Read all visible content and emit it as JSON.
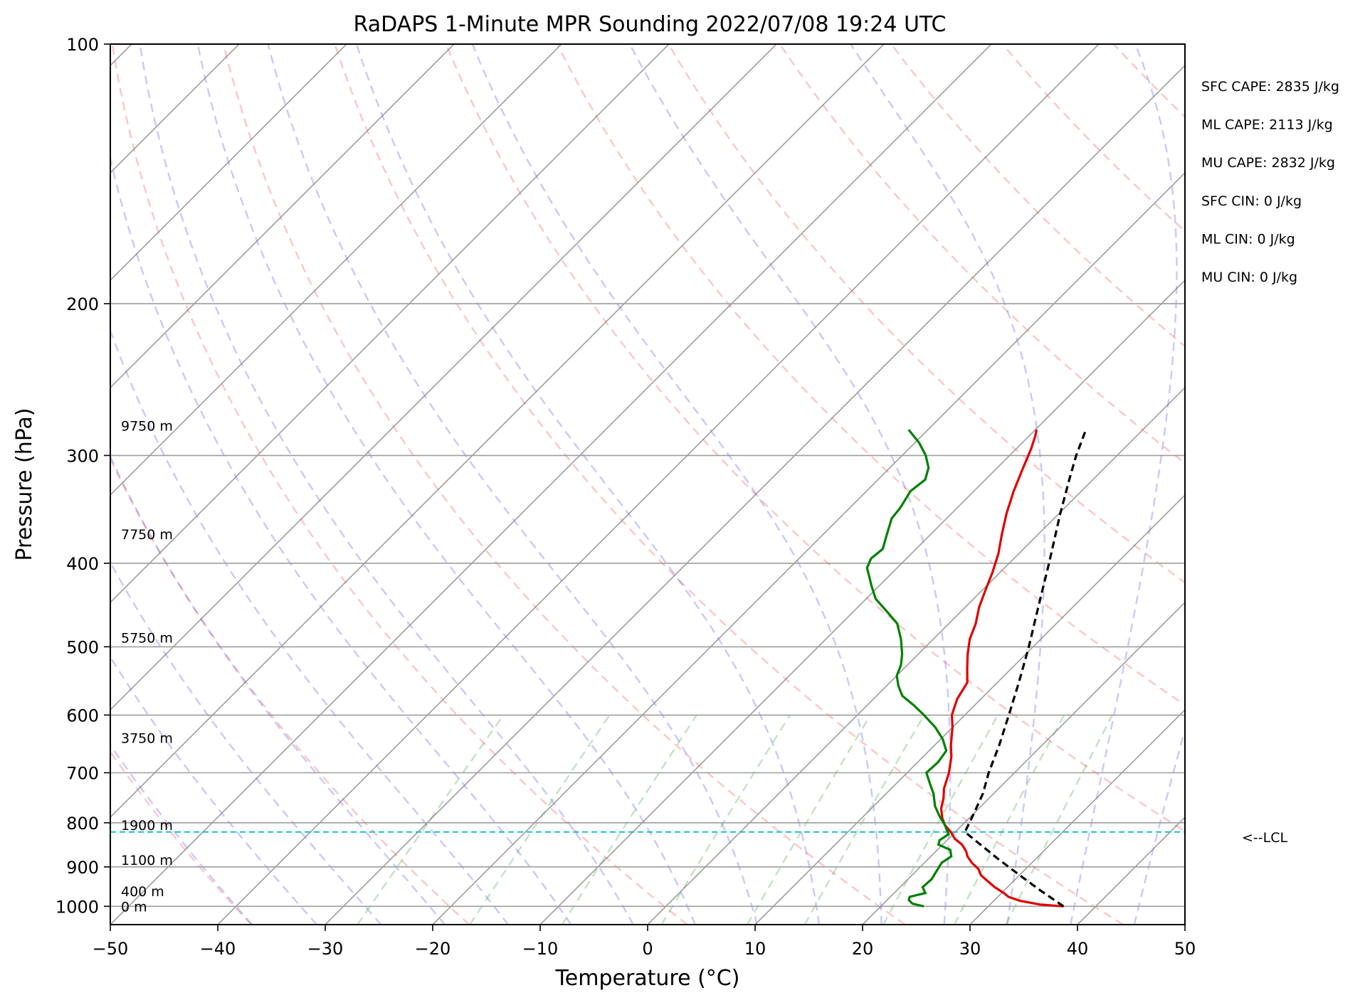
{
  "chart_data": {
    "type": "skew-t",
    "title": "RaDAPS 1-Minute MPR Sounding 2022/07/08 19:24 UTC",
    "xlabel": "Temperature (°C)",
    "ylabel": "Pressure (hPa)",
    "xlim": [
      -50,
      50
    ],
    "ylim": [
      1050,
      100
    ],
    "log_pressure": true,
    "grid": true,
    "x_ticks": [
      -50,
      -40,
      -30,
      -20,
      -10,
      0,
      10,
      20,
      30,
      40,
      50
    ],
    "x_tick_labels": [
      "−50",
      "−40",
      "−30",
      "−20",
      "−10",
      "0",
      "10",
      "20",
      "30",
      "40",
      "50"
    ],
    "y_ticks": [
      1000,
      900,
      800,
      700,
      600,
      500,
      400,
      300,
      200,
      100
    ],
    "y_tick_labels": [
      "1000",
      "900",
      "800",
      "700",
      "600",
      "500",
      "400",
      "300",
      "200",
      "100"
    ],
    "height_labels": [
      {
        "text": "0 m",
        "p": 1000
      },
      {
        "text": "400 m",
        "p": 960
      },
      {
        "text": "1100 m",
        "p": 883
      },
      {
        "text": "1900 m",
        "p": 805
      },
      {
        "text": "3750 m",
        "p": 638
      },
      {
        "text": "5750 m",
        "p": 488
      },
      {
        "text": "7750 m",
        "p": 370
      },
      {
        "text": "9750 m",
        "p": 277
      }
    ],
    "indices": [
      "SFC CAPE: 2835 J/kg",
      "ML CAPE: 2113 J/kg",
      "MU CAPE: 2832 J/kg",
      "SFC CIN: 0 J/kg",
      "ML CIN: 0 J/kg",
      "MU CIN: 0 J/kg"
    ],
    "lcl": {
      "p": 820,
      "label": "<--LCL"
    },
    "series": [
      {
        "kind": "temperature",
        "color": "#e00000",
        "points": [
          [
            1000,
            37.0
          ],
          [
            995,
            34.6
          ],
          [
            985,
            32.4
          ],
          [
            975,
            31.0
          ],
          [
            965,
            30.2
          ],
          [
            950,
            28.8
          ],
          [
            935,
            27.6
          ],
          [
            920,
            26.4
          ],
          [
            905,
            25.6
          ],
          [
            890,
            24.4
          ],
          [
            875,
            23.4
          ],
          [
            865,
            22.9
          ],
          [
            860,
            22.6
          ],
          [
            848,
            21.8
          ],
          [
            835,
            20.6
          ],
          [
            820,
            19.6
          ],
          [
            805,
            18.4
          ],
          [
            790,
            17.5
          ],
          [
            770,
            16.5
          ],
          [
            750,
            15.8
          ],
          [
            730,
            14.9
          ],
          [
            700,
            13.9
          ],
          [
            670,
            12.6
          ],
          [
            650,
            11.5
          ],
          [
            620,
            10.0
          ],
          [
            600,
            8.8
          ],
          [
            575,
            7.8
          ],
          [
            550,
            7.2
          ],
          [
            530,
            5.9
          ],
          [
            510,
            4.6
          ],
          [
            490,
            3.4
          ],
          [
            470,
            2.5
          ],
          [
            450,
            1.3
          ],
          [
            430,
            0.3
          ],
          [
            410,
            -0.7
          ],
          [
            390,
            -1.9
          ],
          [
            370,
            -3.4
          ],
          [
            350,
            -4.9
          ],
          [
            330,
            -6.3
          ],
          [
            310,
            -7.6
          ],
          [
            295,
            -8.6
          ],
          [
            285,
            -9.4
          ],
          [
            280,
            -9.9
          ]
        ]
      },
      {
        "kind": "dewpoint",
        "color": "#008000",
        "points": [
          [
            1000,
            24.0
          ],
          [
            993,
            22.7
          ],
          [
            983,
            22.0
          ],
          [
            975,
            21.8
          ],
          [
            965,
            22.9
          ],
          [
            950,
            22.1
          ],
          [
            930,
            22.2
          ],
          [
            910,
            21.9
          ],
          [
            890,
            21.6
          ],
          [
            875,
            21.9
          ],
          [
            860,
            21.2
          ],
          [
            848,
            19.6
          ],
          [
            838,
            19.3
          ],
          [
            825,
            19.6
          ],
          [
            805,
            18.4
          ],
          [
            785,
            17.0
          ],
          [
            765,
            15.7
          ],
          [
            740,
            14.4
          ],
          [
            720,
            13.1
          ],
          [
            700,
            11.8
          ],
          [
            680,
            11.9
          ],
          [
            660,
            11.6
          ],
          [
            640,
            10.2
          ],
          [
            620,
            8.4
          ],
          [
            600,
            6.2
          ],
          [
            585,
            4.4
          ],
          [
            570,
            2.4
          ],
          [
            555,
            1.1
          ],
          [
            540,
            0.0
          ],
          [
            525,
            -0.6
          ],
          [
            510,
            -1.5
          ],
          [
            490,
            -3.0
          ],
          [
            470,
            -4.8
          ],
          [
            455,
            -6.9
          ],
          [
            440,
            -9.1
          ],
          [
            425,
            -10.7
          ],
          [
            405,
            -12.8
          ],
          [
            395,
            -13.3
          ],
          [
            385,
            -13.1
          ],
          [
            370,
            -14.1
          ],
          [
            355,
            -15.1
          ],
          [
            345,
            -15.3
          ],
          [
            330,
            -15.9
          ],
          [
            320,
            -15.6
          ],
          [
            310,
            -16.4
          ],
          [
            300,
            -17.8
          ],
          [
            290,
            -19.6
          ],
          [
            280,
            -21.8
          ]
        ]
      },
      {
        "kind": "parcel",
        "color": "#000000",
        "points": [
          [
            1000,
            37.0
          ],
          [
            960,
            33.5
          ],
          [
            920,
            30.0
          ],
          [
            880,
            26.4
          ],
          [
            850,
            23.7
          ],
          [
            820,
            20.9
          ],
          [
            780,
            20.0
          ],
          [
            740,
            19.0
          ],
          [
            700,
            17.6
          ],
          [
            650,
            16.0
          ],
          [
            600,
            14.1
          ],
          [
            550,
            12.0
          ],
          [
            500,
            9.6
          ],
          [
            450,
            6.8
          ],
          [
            400,
            3.7
          ],
          [
            350,
            0.1
          ],
          [
            320,
            -2.2
          ],
          [
            300,
            -3.8
          ],
          [
            280,
            -5.3
          ]
        ]
      }
    ]
  }
}
